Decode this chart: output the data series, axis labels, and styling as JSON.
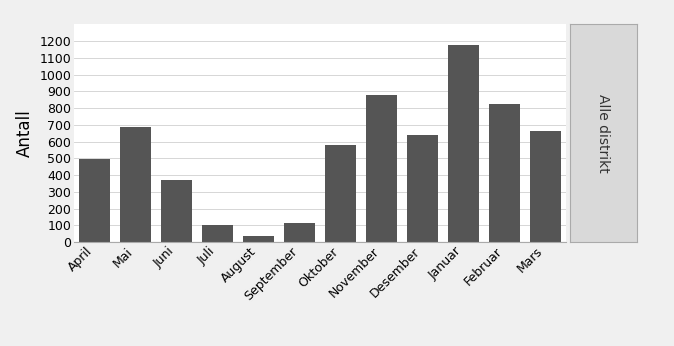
{
  "categories": [
    "April",
    "Mai",
    "Juni",
    "Juli",
    "August",
    "September",
    "Oktober",
    "November",
    "Desember",
    "Januar",
    "Februar",
    "Mars"
  ],
  "values": [
    495,
    685,
    370,
    105,
    35,
    115,
    580,
    875,
    640,
    1175,
    825,
    665
  ],
  "bar_color": "#555555",
  "ylabel": "Antall",
  "facet_label": "Alle distrikt",
  "ylim": [
    0,
    1300
  ],
  "yticks": [
    0,
    100,
    200,
    300,
    400,
    500,
    600,
    700,
    800,
    900,
    1000,
    1100,
    1200
  ],
  "plot_bg": "#ffffff",
  "facet_bg": "#d9d9d9",
  "fig_bg": "#f0f0f0",
  "grid_color": "#d0d0d0",
  "bar_width": 0.75,
  "ylabel_fontsize": 12,
  "tick_fontsize": 9,
  "facet_fontsize": 10
}
